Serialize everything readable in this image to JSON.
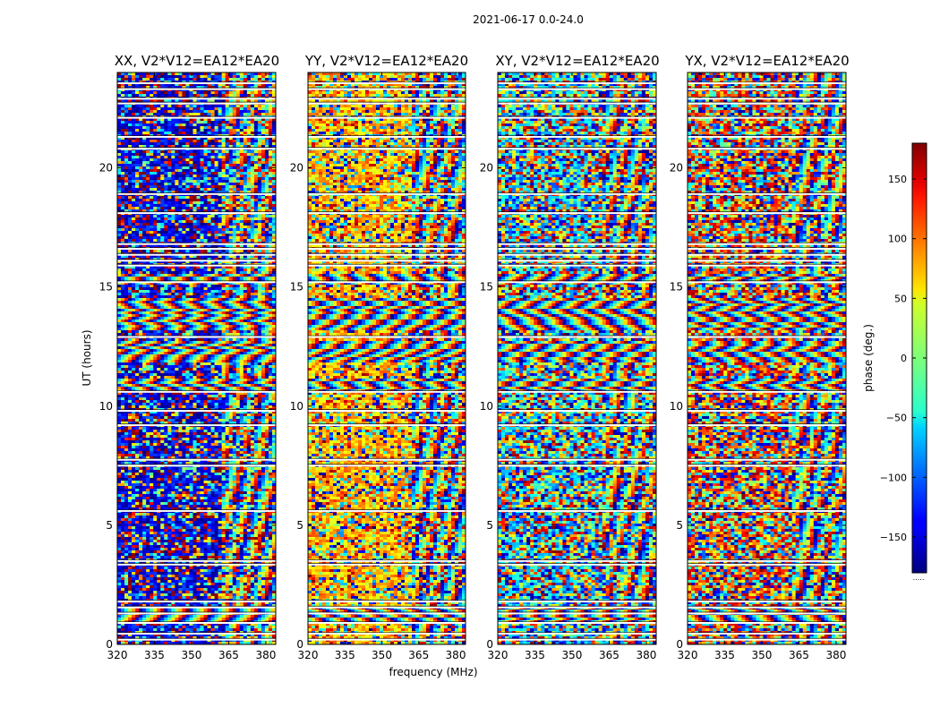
{
  "chart_data": {
    "type": "heatmap",
    "suptitle": "2021-06-17 0.0-24.0",
    "xlabel": "frequency (MHz)",
    "ylabel": "UT (hours)",
    "xlim": [
      320,
      384
    ],
    "ylim": [
      0,
      24
    ],
    "xticks": [
      320,
      335,
      350,
      365,
      380
    ],
    "yticks": [
      0,
      5,
      10,
      15,
      20
    ],
    "colormap": "jet",
    "colorbar": {
      "label": "phase (deg.)",
      "range": [
        -180,
        180
      ],
      "ticks": [
        150,
        100,
        50,
        0,
        -50,
        -100,
        -150
      ],
      "tick_labels": [
        "150",
        "100",
        "50",
        "0",
        "−50",
        "−100",
        "−150"
      ],
      "bottom_label": "....."
    },
    "panels": [
      {
        "title": "XX, V2*V12=EA12*EA20",
        "polarization": "XX",
        "band_bias_deg": -150,
        "upper_band_bias_deg": 40,
        "coherence": 0.55
      },
      {
        "title": "YY, V2*V12=EA12*EA20",
        "polarization": "YY",
        "band_bias_deg": 70,
        "upper_band_bias_deg": 120,
        "coherence": 0.55
      },
      {
        "title": "XY, V2*V12=EA12*EA20",
        "polarization": "XY",
        "band_bias_deg": -60,
        "upper_band_bias_deg": -60,
        "coherence": 0.2
      },
      {
        "title": "YX, V2*V12=EA12*EA20",
        "polarization": "YX",
        "band_bias_deg": 120,
        "upper_band_bias_deg": 120,
        "coherence": 0.2
      }
    ],
    "flagged_ut_hours": [
      0.2,
      0.45,
      0.9,
      1.3,
      1.55,
      1.8,
      3.35,
      3.5,
      5.6,
      7.5,
      7.75,
      9.2,
      9.8,
      10.6,
      12.9,
      15.2,
      15.9,
      16.1,
      16.35,
      16.6,
      16.8,
      18.1,
      18.9,
      20.8,
      21.3,
      22.1,
      22.7,
      22.9,
      23.3,
      23.55
    ],
    "dense_rows_ut_hours": [
      [
        1.0,
        1.6
      ],
      [
        10.6,
        11.2
      ],
      [
        11.9,
        12.8
      ],
      [
        13.2,
        14.6
      ],
      [
        15.2,
        15.6
      ]
    ]
  }
}
